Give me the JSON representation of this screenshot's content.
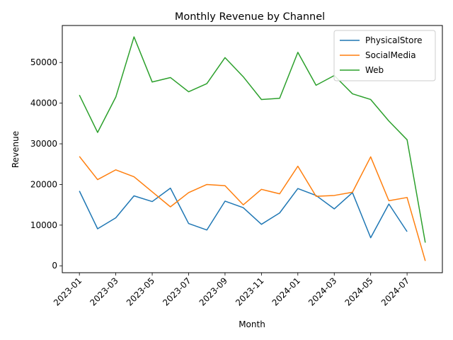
{
  "chart_data": {
    "type": "line",
    "title": "Monthly Revenue by Channel",
    "xlabel": "Month",
    "ylabel": "Revenue",
    "x": [
      "2023-01",
      "2023-02",
      "2023-03",
      "2023-04",
      "2023-05",
      "2023-06",
      "2023-07",
      "2023-08",
      "2023-09",
      "2023-10",
      "2023-11",
      "2023-12",
      "2024-01",
      "2024-02",
      "2024-03",
      "2024-04",
      "2024-05",
      "2024-06",
      "2024-07",
      "2024-08"
    ],
    "x_ticks": [
      "2023-01",
      "2023-03",
      "2023-05",
      "2023-07",
      "2023-09",
      "2023-11",
      "2024-01",
      "2024-03",
      "2024-05",
      "2024-07"
    ],
    "y_ticks": [
      0,
      10000,
      20000,
      30000,
      40000,
      50000
    ],
    "ylim": [
      -1700,
      59100
    ],
    "legend_position": "top-right",
    "grid": false,
    "series": [
      {
        "name": "PhysicalStore",
        "color": "#1f77b4",
        "values": [
          18400,
          9100,
          11800,
          17200,
          15800,
          19100,
          10400,
          8800,
          15900,
          14300,
          10200,
          13000,
          19000,
          17300,
          14000,
          18000,
          6900,
          15200,
          8400,
          null
        ]
      },
      {
        "name": "SocialMedia",
        "color": "#ff7f0e",
        "values": [
          26900,
          21200,
          23600,
          21900,
          18200,
          14500,
          18000,
          20000,
          19700,
          15000,
          18800,
          17700,
          24500,
          17100,
          17300,
          18100,
          26800,
          16000,
          16800,
          1200
        ]
      },
      {
        "name": "Web",
        "color": "#2ca02c",
        "values": [
          42000,
          32800,
          41500,
          56300,
          45200,
          46300,
          42800,
          44800,
          51200,
          46500,
          40900,
          41200,
          52500,
          44400,
          46800,
          42300,
          40900,
          35600,
          31000,
          5700
        ]
      }
    ]
  }
}
